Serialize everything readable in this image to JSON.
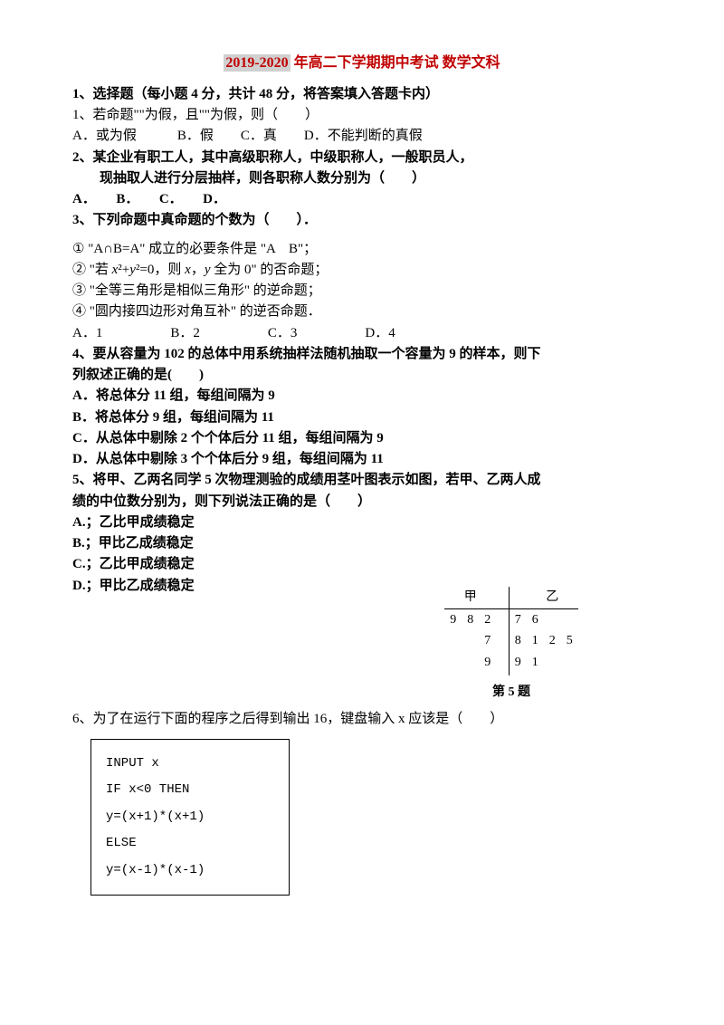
{
  "title": {
    "year": "2019-2020",
    "rest": " 年高二下学期期中考试 数学文科"
  },
  "section1": {
    "head": "1、选择题（每小题 4 分，共计 48 分，将答案填入答题卡内）"
  },
  "q1": {
    "text": "1、若命题\"\"为假，且\"\"为假，则（　　）",
    "optA": "A．或为假",
    "optB": "B．假",
    "optC": "C．真",
    "optD": "D．不能判断的真假"
  },
  "q2": {
    "line1": "2、某企业有职工人，其中高级职称人，中级职称人，一般职员人，",
    "line2": "现抽取人进行分层抽样，则各职称人数分别为（　　）",
    "opts": "A．　　B．　　C．　　D．"
  },
  "q3": {
    "text": "3、下列命题中真命题的个数为（　　）．",
    "c1": "① \"A∩B=A\" 成立的必要条件是 \"A　B\"；",
    "c2": "② \"若 x²+y²=0，则 x，y 全为 0\" 的否命题；",
    "c3": "③ \"全等三角形是相似三角形\" 的逆命题；",
    "c4": "④ \"圆内接四边形对角互补\" 的逆否命题．",
    "optA": "A．1",
    "optB": "B．2",
    "optC": "C．3",
    "optD": "D．4"
  },
  "q4": {
    "line1": "4、要从容量为 102 的总体中用系统抽样法随机抽取一个容量为 9 的样本，则下",
    "line2": "列叙述正确的是(　　)",
    "optA": "A．将总体分 11 组，每组间隔为 9",
    "optB": "B．将总体分 9 组，每组间隔为 11",
    "optC": "C．从总体中剔除 2 个个体后分 11 组，每组间隔为 9",
    "optD": "D．从总体中剔除 3 个个体后分 9 组，每组间隔为 11"
  },
  "q5": {
    "line1": "5、将甲、乙两名同学 5 次物理测验的成绩用茎叶图表示如图，若甲、乙两人成",
    "line2": "绩的中位数分别为，则下列说法正确的是（　　）",
    "optA": "A.；乙比甲成绩稳定",
    "optB": "B.；甲比乙成绩稳定",
    "optC": "C.；乙比甲成绩稳定",
    "optD": "D.；甲比乙成绩稳定",
    "stemleaf": {
      "head_left": "甲",
      "head_right": "乙",
      "rows": [
        {
          "left": [
            "9",
            "8",
            "2"
          ],
          "stem": "7",
          "right": [
            "6",
            "",
            ""
          ]
        },
        {
          "left": [
            "",
            "",
            "7"
          ],
          "stem": "8",
          "right": [
            "1",
            "2",
            "5"
          ]
        },
        {
          "left": [
            "",
            "",
            "9"
          ],
          "stem": "9",
          "right": [
            "1",
            "",
            ""
          ]
        }
      ],
      "caption": "第 5 题"
    }
  },
  "q6": {
    "text": "6、为了在运行下面的程序之后得到输出 16，键盘输入 x 应该是（　　）",
    "code": {
      "l1": "INPUT x",
      "l2": "IF  x<0  THEN",
      "l3": " y=(x+1)*(x+1)",
      "l4": "ELSE",
      "l5": " y=(x-1)*(x-1)"
    }
  },
  "style": {
    "title_color": "#c00000",
    "year_bg": "#d0d0d0",
    "text_color": "#000000",
    "bg_color": "#ffffff",
    "font_size_body": 15,
    "font_size_title": 16,
    "code_box_width": 220,
    "code_border": "#000000"
  }
}
